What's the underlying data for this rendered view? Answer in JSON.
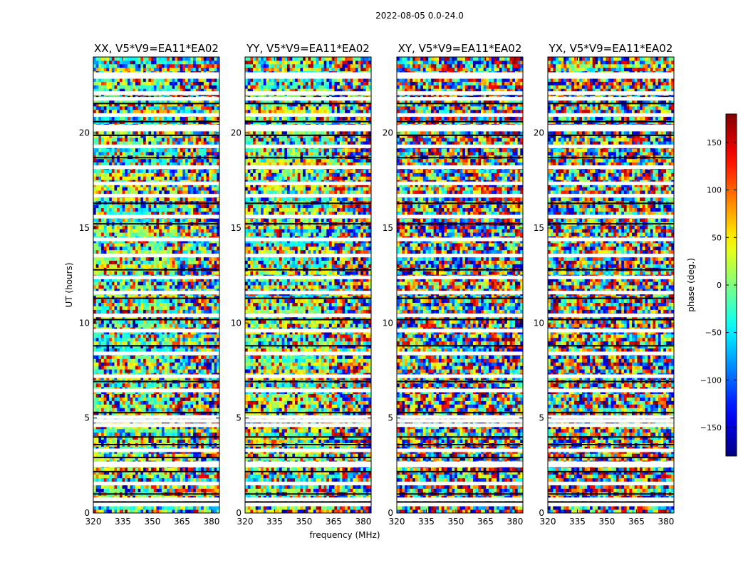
{
  "figure": {
    "title": "2022-08-05 0.0-24.0"
  },
  "chart_data": {
    "type": "heatmap",
    "x_label": "frequency (MHz)",
    "y_label": "UT (hours)",
    "x_ticks": [
      320,
      335,
      350,
      365,
      380
    ],
    "y_ticks": [
      0,
      5,
      10,
      15,
      20
    ],
    "xlim": [
      320,
      384
    ],
    "ylim": [
      0,
      24
    ],
    "panels": [
      {
        "title": "XX, V5*V9=EA11*EA02",
        "polarization": "XX"
      },
      {
        "title": "YY, V5*V9=EA11*EA02",
        "polarization": "YY"
      },
      {
        "title": "XY, V5*V9=EA11*EA02",
        "polarization": "XY"
      },
      {
        "title": "YX, V5*V9=EA11*EA02",
        "polarization": "YX"
      }
    ],
    "colorbar": {
      "label": "phase (deg.)",
      "range": [
        -180,
        180
      ],
      "ticks": [
        150,
        100,
        50,
        0,
        -50,
        -100,
        -150
      ],
      "tick_labels": [
        "150",
        "100",
        "50",
        "0",
        "−50",
        "−100",
        "−150"
      ],
      "colormap": "jet"
    },
    "flagged_hours": [
      0.45,
      0.72,
      1.55,
      2.5,
      2.62,
      3.3,
      4.62,
      4.85,
      5.05,
      6.45,
      7.2,
      8.4,
      9.6,
      10.4,
      11.6,
      12.4,
      13.55,
      14.4,
      15.6,
      16.7,
      17.35,
      18.2,
      19.3,
      20.18,
      20.35,
      20.95,
      21.8,
      22.1,
      22.95,
      23.1
    ],
    "gap_hours": [
      0.58,
      1.0,
      2.18,
      2.92,
      3.6,
      4.0,
      5.28,
      6.92,
      8.8,
      10.18,
      11.3,
      12.8,
      15.22,
      16.3,
      18.7,
      19.88,
      20.6,
      21.55
    ],
    "colors": {
      "flag_color": "#ffffff",
      "frame_color": "#000000"
    }
  }
}
